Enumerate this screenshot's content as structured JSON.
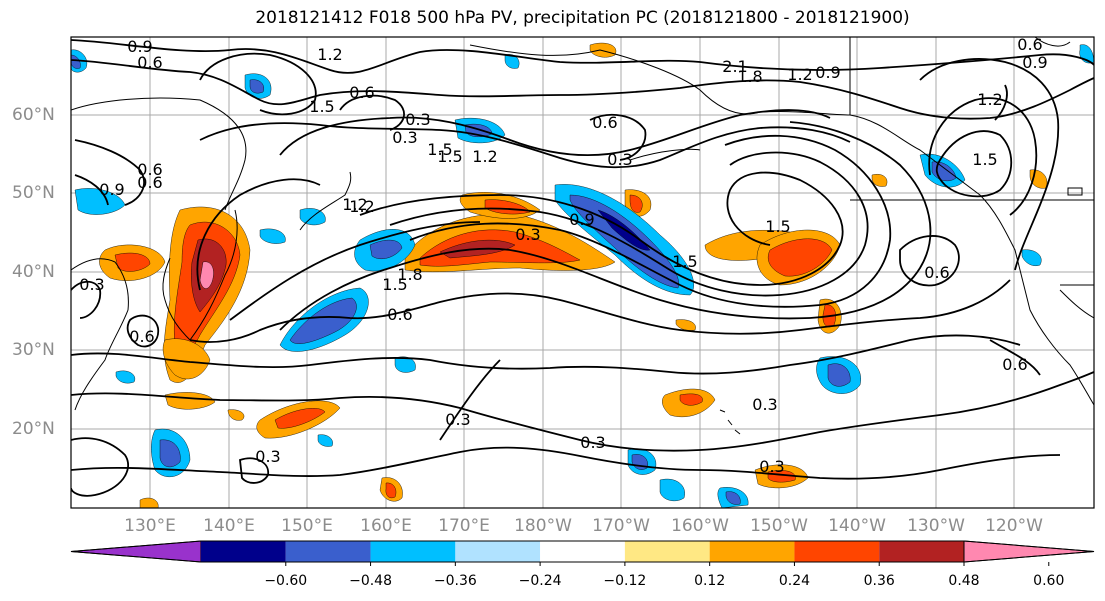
{
  "title": "2018121412 F018 500 hPa PV, precipitation PC (2018121800 - 2018121900)",
  "lat_labels": [
    "60°N",
    "50°N",
    "40°N",
    "30°N",
    "20°N"
  ],
  "lon_labels": [
    "130°E",
    "140°E",
    "150°E",
    "160°E",
    "170°E",
    "180°W",
    "170°W",
    "160°W",
    "150°W",
    "140°W",
    "130°W",
    "120°W"
  ],
  "contour_labels": [
    "0.9",
    "0.6",
    "1.2",
    "1.5",
    "0.6",
    "0.3",
    "1.5",
    "1.2",
    "0.3",
    "0.6",
    "0.3",
    "2.1",
    "1.8",
    "1.2",
    "0.9",
    "0.6",
    "0.9",
    "1.2",
    "1.5",
    "0.6",
    "0.6",
    "0.3",
    "0.9",
    "1.2",
    "0.3",
    "0.9",
    "1.5",
    "1.5",
    "1.5",
    "1.8",
    "0.6",
    "0.6",
    "0.6",
    "0.3",
    "0.3",
    "0.3",
    "0.3",
    "0.3",
    "0.6",
    "1.2",
    "1.5"
  ],
  "colorbar": {
    "colors": [
      "#9932cc",
      "#00008b",
      "#3a5fcd",
      "#00bfff",
      "#b0e2ff",
      "#ffffff",
      "#ffe884",
      "#ffa500",
      "#ff4500",
      "#b22222",
      "#ff88b0"
    ],
    "ticks": [
      "−0.60",
      "−0.48",
      "−0.36",
      "−0.24",
      "−0.12",
      "0.12",
      "0.24",
      "0.36",
      "0.48",
      "0.60"
    ]
  }
}
